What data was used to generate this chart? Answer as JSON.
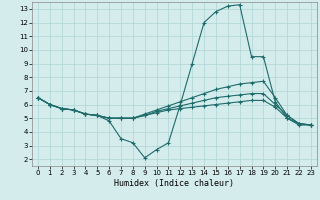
{
  "xlabel": "Humidex (Indice chaleur)",
  "background_color": "#d5ecec",
  "grid_color": "#afd4d4",
  "line_color": "#1e6b6b",
  "xlim": [
    -0.5,
    23.5
  ],
  "ylim": [
    1.5,
    13.5
  ],
  "xticks": [
    0,
    1,
    2,
    3,
    4,
    5,
    6,
    7,
    8,
    9,
    10,
    11,
    12,
    13,
    14,
    15,
    16,
    17,
    18,
    19,
    20,
    21,
    22,
    23
  ],
  "yticks": [
    2,
    3,
    4,
    5,
    6,
    7,
    8,
    9,
    10,
    11,
    12,
    13
  ],
  "lines": [
    {
      "x": [
        0,
        1,
        2,
        3,
        4,
        5,
        6,
        7,
        8,
        9,
        10,
        11,
        12,
        13,
        14,
        15,
        16,
        17,
        18,
        19,
        20,
        21,
        22,
        23
      ],
      "y": [
        6.5,
        6.0,
        5.7,
        5.6,
        5.3,
        5.2,
        4.8,
        3.5,
        3.2,
        2.1,
        2.7,
        3.2,
        6.0,
        9.0,
        12.0,
        12.8,
        13.2,
        13.3,
        9.5,
        9.5,
        6.2,
        5.0,
        4.5,
        4.5
      ]
    },
    {
      "x": [
        0,
        1,
        2,
        3,
        4,
        5,
        6,
        7,
        8,
        9,
        10,
        11,
        12,
        13,
        14,
        15,
        16,
        17,
        18,
        19,
        20,
        21,
        22,
        23
      ],
      "y": [
        6.5,
        6.0,
        5.7,
        5.6,
        5.3,
        5.2,
        5.0,
        5.0,
        5.0,
        5.3,
        5.6,
        5.9,
        6.2,
        6.5,
        6.8,
        7.1,
        7.3,
        7.5,
        7.6,
        7.7,
        6.5,
        5.2,
        4.6,
        4.5
      ]
    },
    {
      "x": [
        0,
        1,
        2,
        3,
        4,
        5,
        6,
        7,
        8,
        9,
        10,
        11,
        12,
        13,
        14,
        15,
        16,
        17,
        18,
        19,
        20,
        21,
        22,
        23
      ],
      "y": [
        6.5,
        6.0,
        5.7,
        5.6,
        5.3,
        5.2,
        5.0,
        5.0,
        5.0,
        5.2,
        5.5,
        5.7,
        5.9,
        6.1,
        6.3,
        6.5,
        6.6,
        6.7,
        6.8,
        6.8,
        6.0,
        5.2,
        4.6,
        4.5
      ]
    },
    {
      "x": [
        0,
        1,
        2,
        3,
        4,
        5,
        6,
        7,
        8,
        9,
        10,
        11,
        12,
        13,
        14,
        15,
        16,
        17,
        18,
        19,
        20,
        21,
        22,
        23
      ],
      "y": [
        6.5,
        6.0,
        5.7,
        5.6,
        5.3,
        5.2,
        5.0,
        5.0,
        5.0,
        5.2,
        5.4,
        5.6,
        5.7,
        5.8,
        5.9,
        6.0,
        6.1,
        6.2,
        6.3,
        6.3,
        5.8,
        5.0,
        4.6,
        4.5
      ]
    }
  ]
}
